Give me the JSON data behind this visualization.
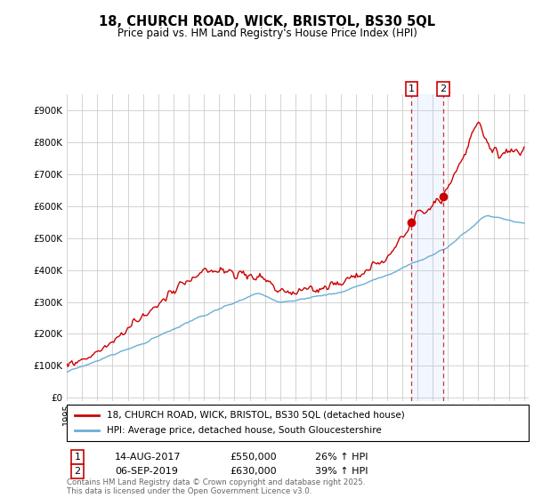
{
  "title": "18, CHURCH ROAD, WICK, BRISTOL, BS30 5QL",
  "subtitle": "Price paid vs. HM Land Registry's House Price Index (HPI)",
  "yticks": [
    0,
    100000,
    200000,
    300000,
    400000,
    500000,
    600000,
    700000,
    800000,
    900000
  ],
  "sale1_date": "14-AUG-2017",
  "sale1_price": 550000,
  "sale1_label": "26% ↑ HPI",
  "sale2_date": "06-SEP-2019",
  "sale2_price": 630000,
  "sale2_label": "39% ↑ HPI",
  "sale1_x": 2017.62,
  "sale2_x": 2019.69,
  "legend_house": "18, CHURCH ROAD, WICK, BRISTOL, BS30 5QL (detached house)",
  "legend_hpi": "HPI: Average price, detached house, South Gloucestershire",
  "footer": "Contains HM Land Registry data © Crown copyright and database right 2025.\nThis data is licensed under the Open Government Licence v3.0.",
  "house_color": "#cc0000",
  "hpi_color": "#6aaed6",
  "shade_color": "#ddeeff",
  "sale_vline_color": "#cc0000",
  "background_color": "#ffffff",
  "grid_color": "#cccccc"
}
